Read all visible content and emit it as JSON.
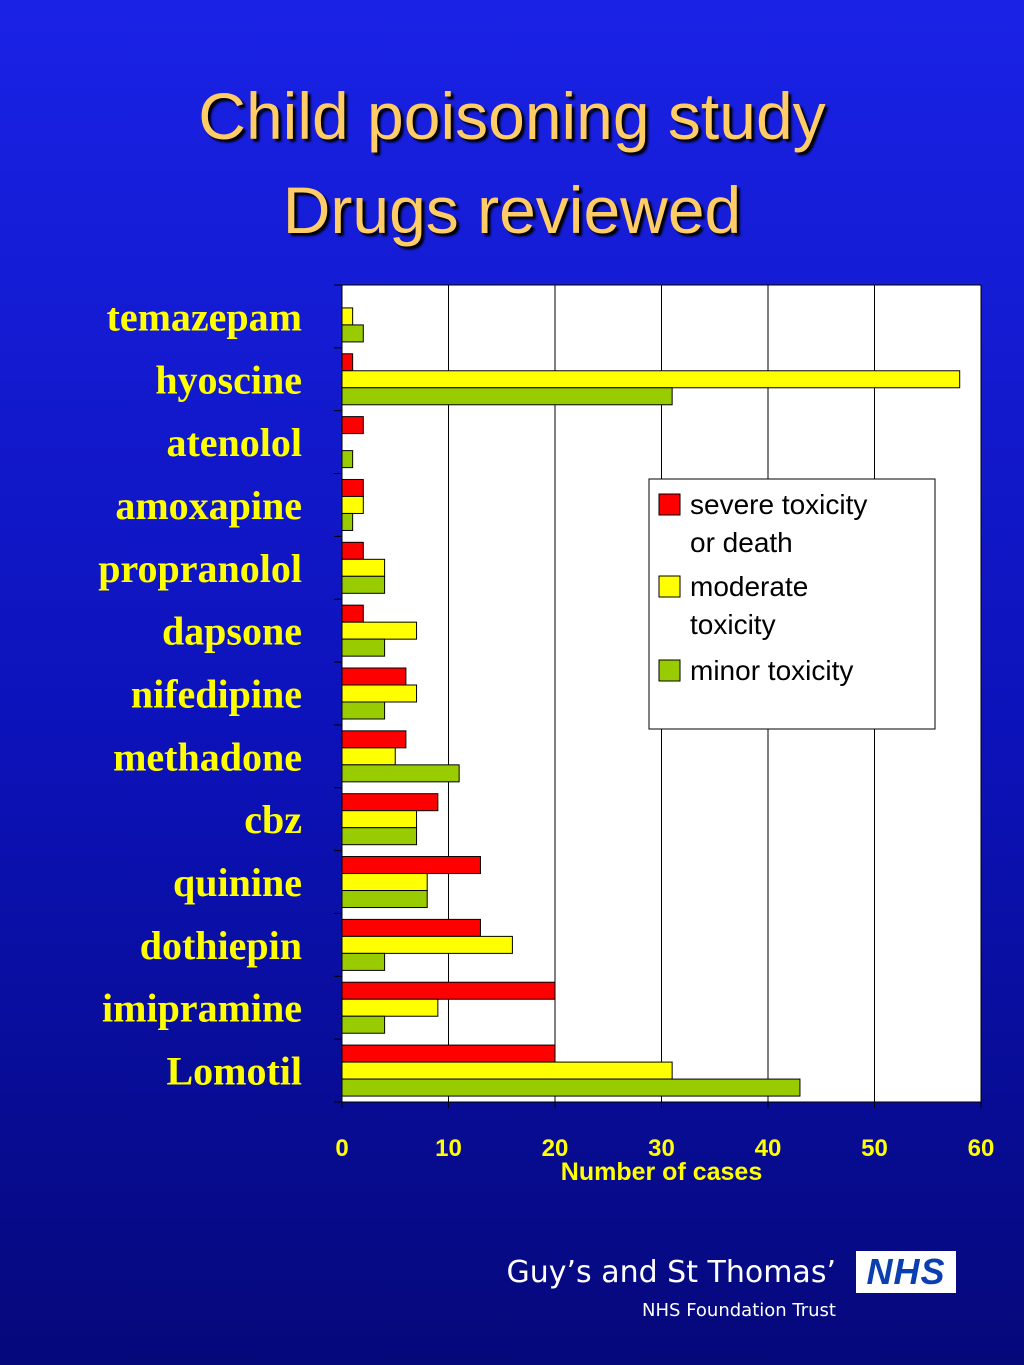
{
  "slide": {
    "title_line1": "Child poisoning study",
    "title_line2": "Drugs reviewed"
  },
  "footer": {
    "organization": "Guy’s and St Thomas’",
    "suborganization": "NHS Foundation Trust",
    "logo_text": "NHS"
  },
  "colors": {
    "background": "#0c12b8",
    "title": "#ffcc66",
    "drug_labels": "#ffff00",
    "severe": "#ff0000",
    "moderate": "#ffff00",
    "minor": "#99cc00"
  },
  "chart_data": {
    "type": "bar",
    "orientation": "horizontal",
    "title": "",
    "xlabel": "Number of cases",
    "ylabel": "",
    "xlim": [
      0,
      60
    ],
    "xticks": [
      0,
      10,
      20,
      30,
      40,
      50,
      60
    ],
    "grid": "vertical",
    "legend_position": "right",
    "categories": [
      "temazepam",
      "hyoscine",
      "atenolol",
      "amoxapine",
      "propranolol",
      "dapsone",
      "nifedipine",
      "methadone",
      "cbz",
      "quinine",
      "dothiepin",
      "imipramine",
      "Lomotil"
    ],
    "series": [
      {
        "name": "severe toxicity or death",
        "legend_lines": [
          "severe toxicity",
          "or death"
        ],
        "color": "#ff0000",
        "values": [
          0,
          1,
          2,
          2,
          2,
          2,
          6,
          6,
          9,
          13,
          13,
          20,
          20
        ]
      },
      {
        "name": "moderate toxicity",
        "legend_lines": [
          "moderate",
          "toxicity"
        ],
        "color": "#ffff00",
        "values": [
          1,
          58,
          0,
          2,
          4,
          7,
          7,
          5,
          7,
          8,
          16,
          9,
          31
        ]
      },
      {
        "name": "minor toxicity",
        "legend_lines": [
          "minor toxicity"
        ],
        "color": "#99cc00",
        "values": [
          2,
          31,
          1,
          1,
          4,
          4,
          4,
          11,
          7,
          8,
          4,
          4,
          43
        ]
      }
    ]
  }
}
